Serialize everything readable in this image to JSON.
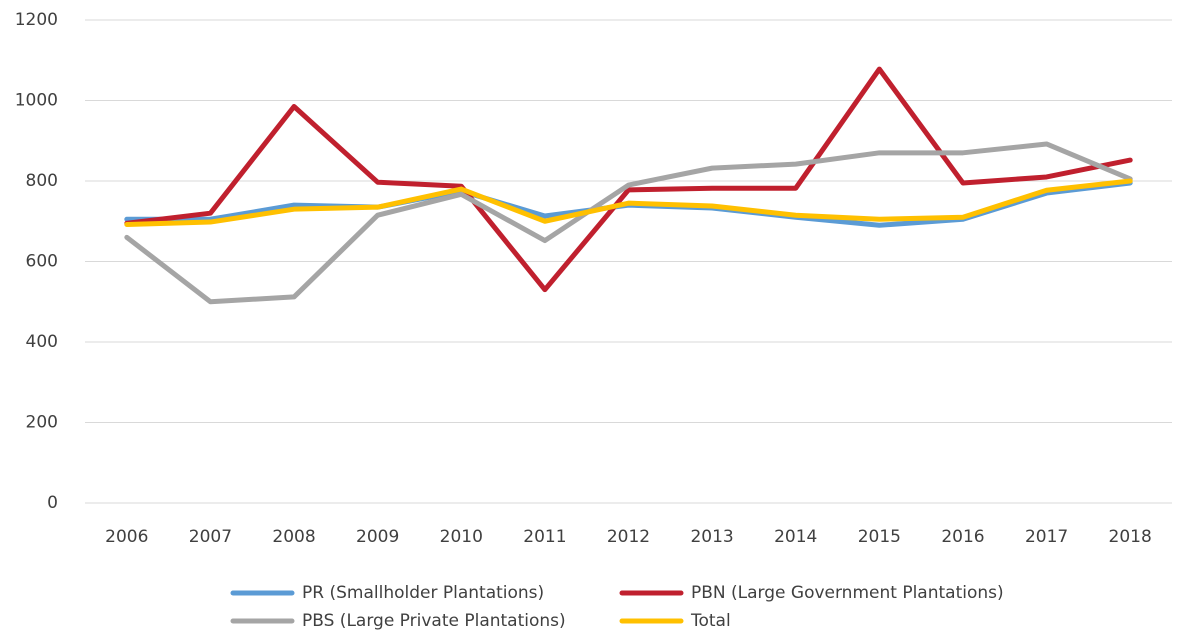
{
  "chart_data": {
    "type": "line",
    "categories": [
      "2006",
      "2007",
      "2008",
      "2009",
      "2010",
      "2011",
      "2012",
      "2013",
      "2014",
      "2015",
      "2016",
      "2017",
      "2018"
    ],
    "series": [
      {
        "name": "PR (Smallholder Plantations)",
        "color": "#5b9bd5",
        "values": [
          705,
          705,
          740,
          735,
          775,
          713,
          740,
          733,
          710,
          690,
          705,
          770,
          795
        ]
      },
      {
        "name": "PBN (Large Government Plantations)",
        "color": "#c0202e",
        "values": [
          695,
          720,
          985,
          797,
          787,
          530,
          778,
          782,
          782,
          1078,
          795,
          810,
          852
        ]
      },
      {
        "name": "PBS (Large Private Plantations)",
        "color": "#a5a5a5",
        "values": [
          660,
          500,
          512,
          715,
          767,
          652,
          790,
          832,
          842,
          870,
          870,
          892,
          805
        ]
      },
      {
        "name": "Total",
        "color": "#ffc000",
        "values": [
          692,
          698,
          730,
          735,
          780,
          700,
          745,
          738,
          715,
          705,
          710,
          777,
          800
        ]
      }
    ],
    "ylim": [
      0,
      1200
    ],
    "yticks": [
      0,
      200,
      400,
      600,
      800,
      1000,
      1200
    ],
    "grid": true,
    "legend": "bottom"
  }
}
